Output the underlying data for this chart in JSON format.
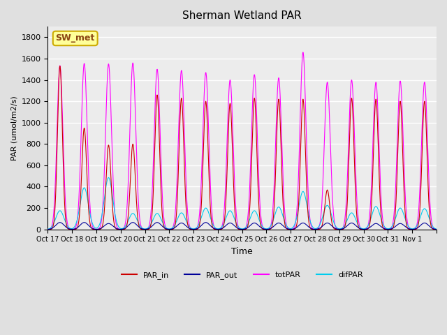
{
  "title": "Sherman Wetland PAR",
  "ylabel": "PAR (umol/m2/s)",
  "xlabel": "Time",
  "annotation": "SW_met",
  "ylim": [
    0,
    1900
  ],
  "yticks": [
    0,
    200,
    400,
    600,
    800,
    1000,
    1200,
    1400,
    1600,
    1800
  ],
  "xtick_labels": [
    "Oct 17",
    "Oct 18",
    "Oct 19",
    "Oct 20",
    "Oct 21",
    "Oct 22",
    "Oct 23",
    "Oct 24",
    "Oct 25",
    "Oct 26",
    "Oct 27",
    "Oct 28",
    "Oct 29",
    "Oct 30",
    "Oct 31",
    "Nov 1",
    ""
  ],
  "colors": {
    "PAR_in": "#cc0000",
    "PAR_out": "#000099",
    "totPAR": "#ff00ff",
    "difPAR": "#00ccee"
  },
  "background_color": "#e0e0e0",
  "plot_bg_color": "#ececec",
  "grid_color": "#ffffff",
  "n_days": 16,
  "points_per_day": 144,
  "par_in_peaks": [
    1530,
    950,
    790,
    800,
    1260,
    1230,
    1200,
    1180,
    1230,
    1220,
    1220,
    370,
    1230,
    1220,
    1200,
    1200
  ],
  "tot_par_peaks": [
    1535,
    1555,
    1550,
    1560,
    1500,
    1490,
    1470,
    1400,
    1450,
    1420,
    1660,
    1380,
    1400,
    1380,
    1390,
    1380
  ],
  "dif_par_peaks": [
    175,
    390,
    485,
    150,
    150,
    155,
    200,
    175,
    175,
    210,
    355,
    225,
    155,
    215,
    200,
    195
  ],
  "par_out_peaks": [
    65,
    65,
    55,
    65,
    65,
    60,
    65,
    60,
    60,
    60,
    60,
    60,
    60,
    55,
    55,
    60
  ]
}
